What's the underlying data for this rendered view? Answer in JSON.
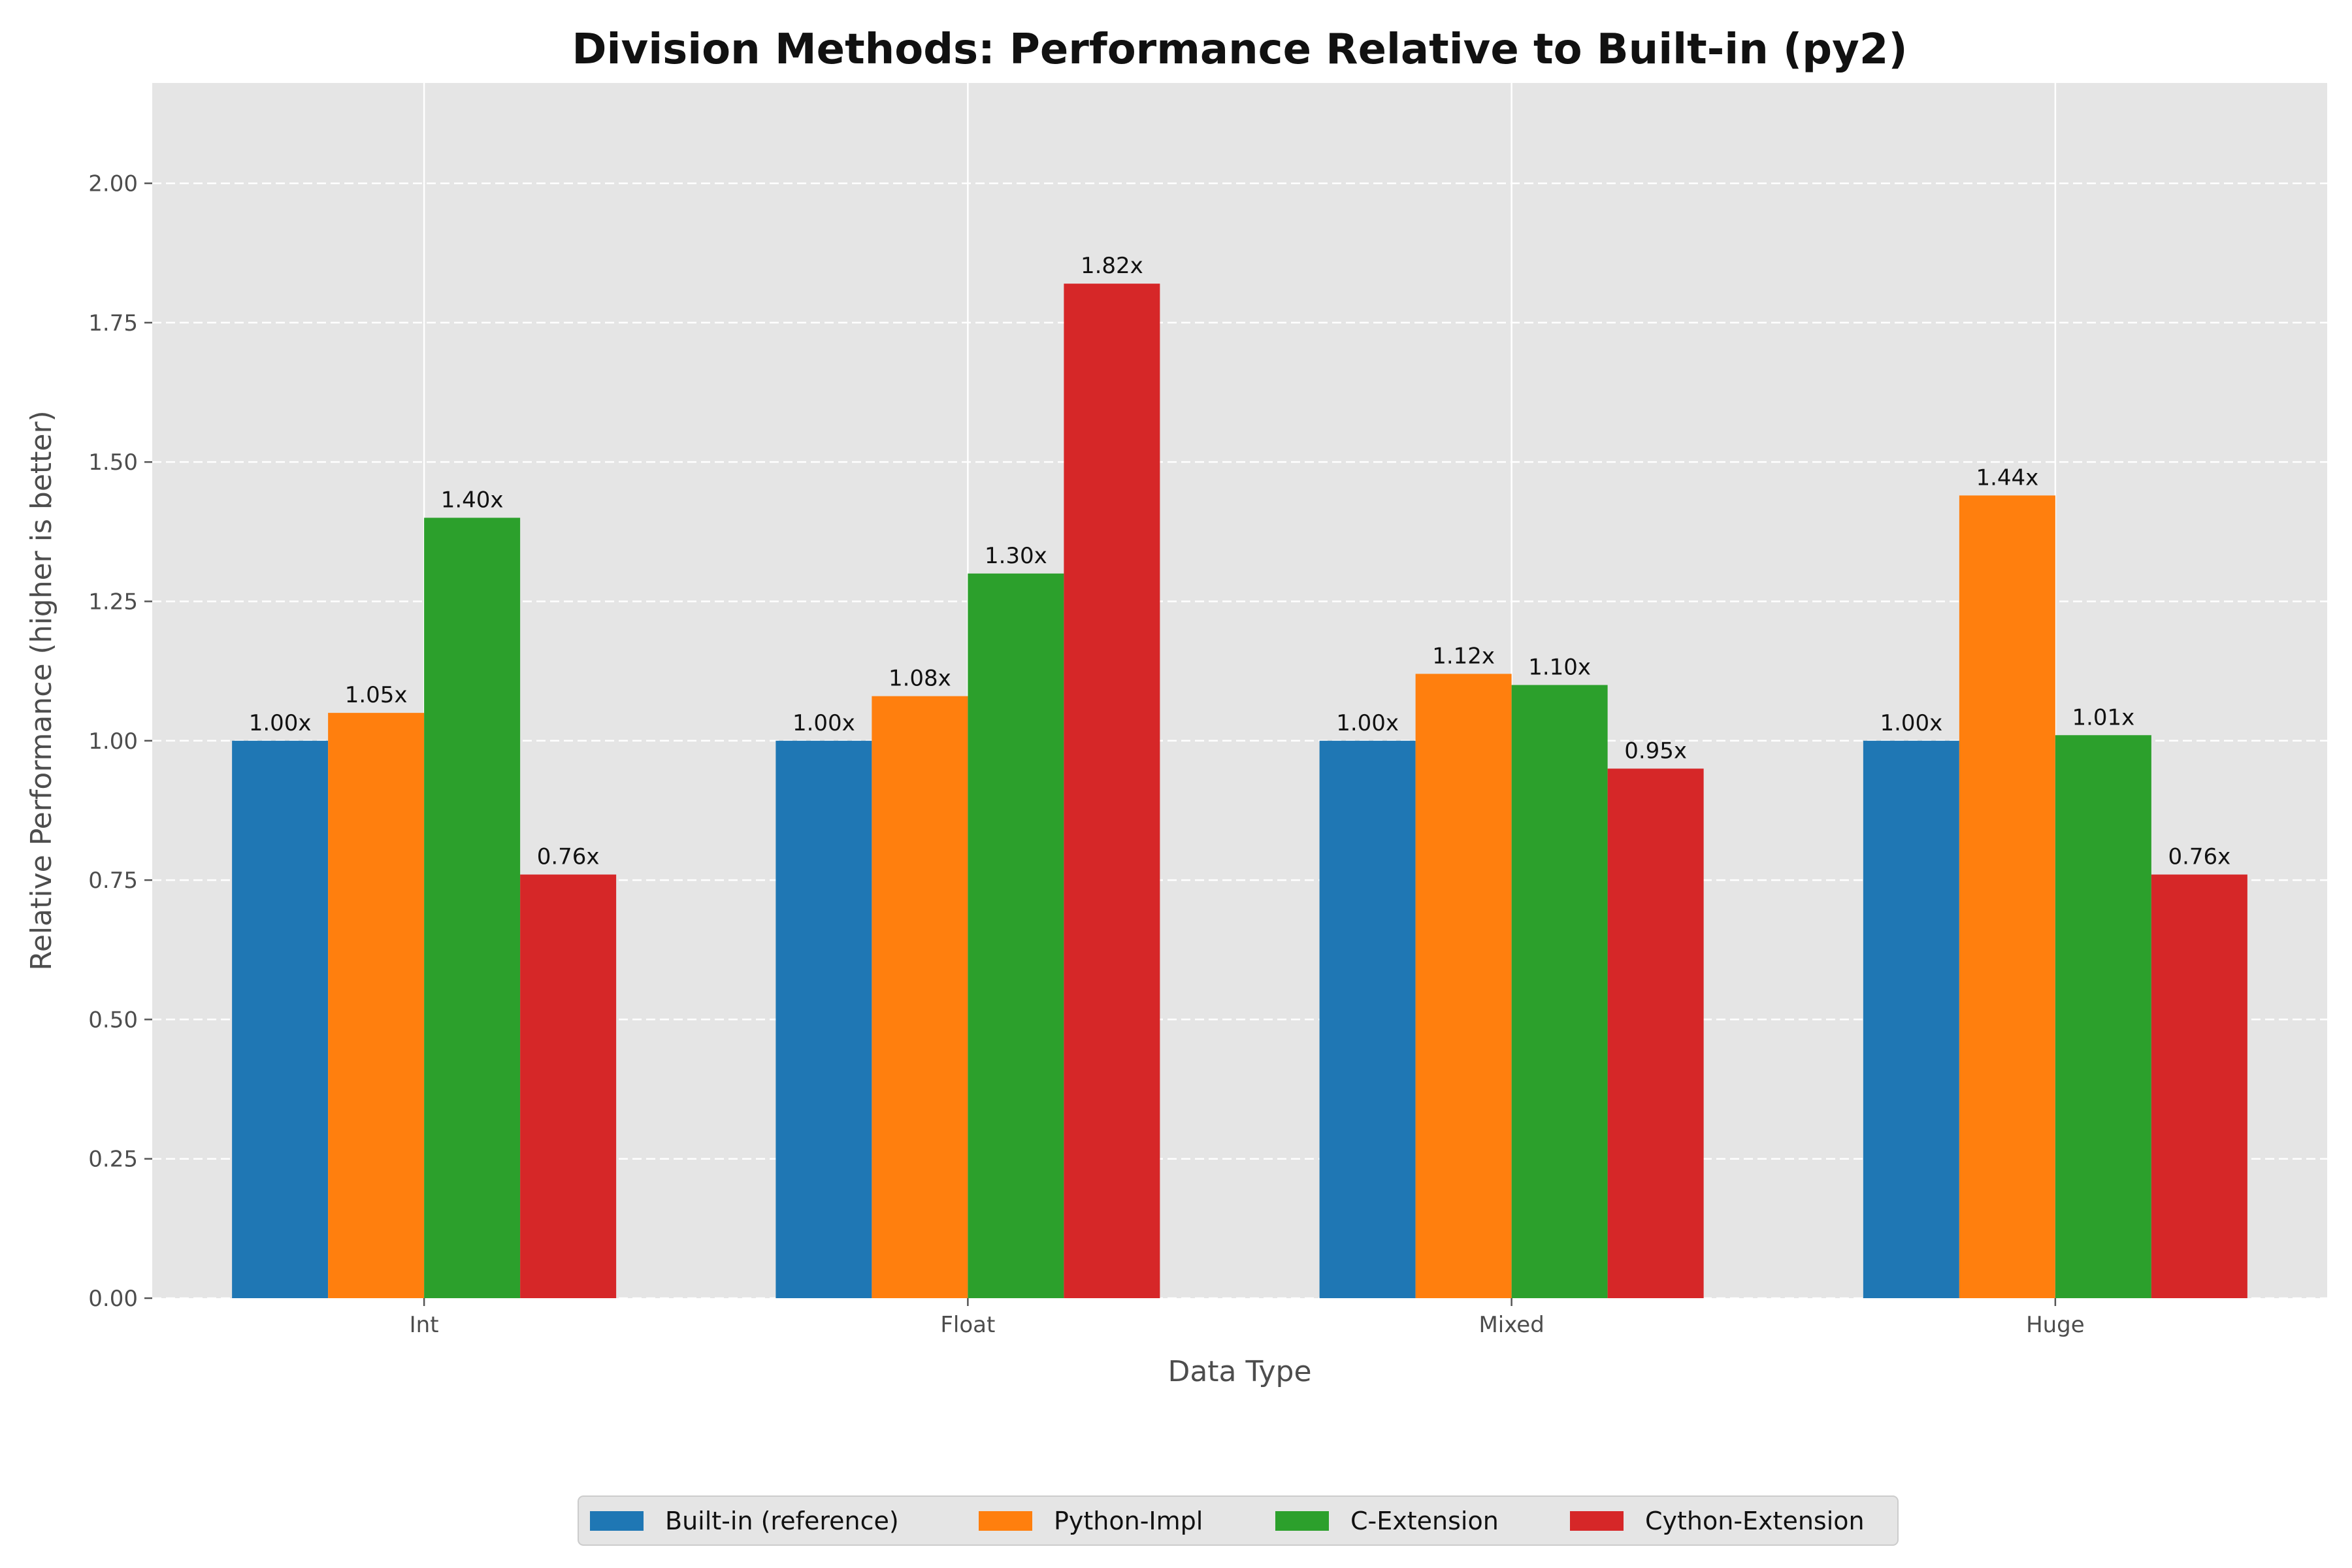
{
  "chart_data": {
    "type": "bar",
    "title": "Division Methods: Performance Relative to Built-in (py2)",
    "xlabel": "Data Type",
    "ylabel": "Relative Performance (higher is better)",
    "categories": [
      "Int",
      "Float",
      "Mixed",
      "Huge"
    ],
    "ylim": [
      0,
      2.18
    ],
    "yticks": [
      "0.00",
      "0.25",
      "0.50",
      "0.75",
      "1.00",
      "1.25",
      "1.50",
      "1.75",
      "2.00"
    ],
    "series": [
      {
        "name": "Built-in (reference)",
        "color": "#1f77b4",
        "values": [
          1.0,
          1.0,
          1.0,
          1.0
        ],
        "labels": [
          "1.00x",
          "1.00x",
          "1.00x",
          "1.00x"
        ]
      },
      {
        "name": "Python-Impl",
        "color": "#ff7f0e",
        "values": [
          1.05,
          1.08,
          1.12,
          1.44
        ],
        "labels": [
          "1.05x",
          "1.08x",
          "1.12x",
          "1.44x"
        ]
      },
      {
        "name": "C-Extension",
        "color": "#2ca02c",
        "values": [
          1.4,
          1.3,
          1.1,
          1.01
        ],
        "labels": [
          "1.40x",
          "1.30x",
          "1.10x",
          "1.01x"
        ]
      },
      {
        "name": "Cython-Extension",
        "color": "#d62728",
        "values": [
          0.76,
          1.82,
          0.95,
          0.76
        ],
        "labels": [
          "0.76x",
          "1.82x",
          "0.95x",
          "0.76x"
        ]
      }
    ],
    "grid": "horizontal dashed, vertical solid at categories",
    "legend_position": "bottom-center",
    "background": "#e5e5e5"
  }
}
